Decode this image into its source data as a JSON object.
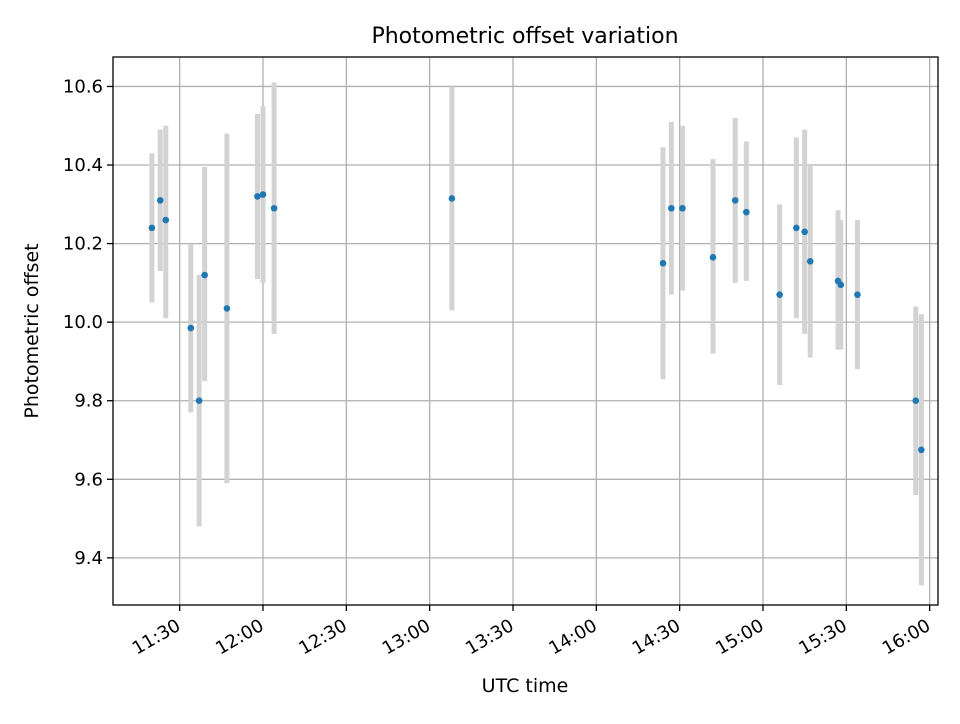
{
  "chart_data": {
    "type": "scatter",
    "title": "Photometric offset variation",
    "xlabel": "UTC time",
    "ylabel": "Photometric offset",
    "xlim": [
      "11:06",
      "16:03"
    ],
    "ylim": [
      9.28,
      10.675
    ],
    "grid": true,
    "x_ticks": [
      "11:30",
      "12:00",
      "12:30",
      "13:00",
      "13:30",
      "14:00",
      "14:30",
      "15:00",
      "15:30",
      "16:00"
    ],
    "y_ticks": [
      9.4,
      9.6,
      9.8,
      10.0,
      10.2,
      10.4,
      10.6
    ],
    "x_tick_label_rotation_deg": -30,
    "colors": {
      "points": "#1f77b4",
      "error_bars": "#d3d3d3",
      "grid": "#b0b0b0"
    },
    "series": [
      {
        "marker": "point",
        "points": [
          {
            "x": "11:20",
            "y": 10.24,
            "lo": 10.05,
            "hi": 10.43
          },
          {
            "x": "11:23",
            "y": 10.31,
            "lo": 10.13,
            "hi": 10.49
          },
          {
            "x": "11:25",
            "y": 10.26,
            "lo": 10.01,
            "hi": 10.5
          },
          {
            "x": "11:34",
            "y": 9.985,
            "lo": 9.77,
            "hi": 10.2
          },
          {
            "x": "11:37",
            "y": 9.8,
            "lo": 9.48,
            "hi": 10.12
          },
          {
            "x": "11:39",
            "y": 10.12,
            "lo": 9.85,
            "hi": 10.395
          },
          {
            "x": "11:47",
            "y": 10.035,
            "lo": 9.59,
            "hi": 10.48
          },
          {
            "x": "11:58",
            "y": 10.32,
            "lo": 10.11,
            "hi": 10.53
          },
          {
            "x": "12:00",
            "y": 10.325,
            "lo": 10.1,
            "hi": 10.55
          },
          {
            "x": "12:04",
            "y": 10.29,
            "lo": 9.97,
            "hi": 10.61
          },
          {
            "x": "13:08",
            "y": 10.315,
            "lo": 10.03,
            "hi": 10.6
          },
          {
            "x": "14:24",
            "y": 10.15,
            "lo": 9.855,
            "hi": 10.445
          },
          {
            "x": "14:27",
            "y": 10.29,
            "lo": 10.07,
            "hi": 10.51
          },
          {
            "x": "14:31",
            "y": 10.29,
            "lo": 10.08,
            "hi": 10.5
          },
          {
            "x": "14:42",
            "y": 10.165,
            "lo": 9.92,
            "hi": 10.415
          },
          {
            "x": "14:50",
            "y": 10.31,
            "lo": 10.1,
            "hi": 10.52
          },
          {
            "x": "14:54",
            "y": 10.28,
            "lo": 10.105,
            "hi": 10.46
          },
          {
            "x": "15:06",
            "y": 10.07,
            "lo": 9.84,
            "hi": 10.3
          },
          {
            "x": "15:12",
            "y": 10.24,
            "lo": 10.01,
            "hi": 10.47
          },
          {
            "x": "15:15",
            "y": 10.23,
            "lo": 9.97,
            "hi": 10.49
          },
          {
            "x": "15:17",
            "y": 10.155,
            "lo": 9.91,
            "hi": 10.4
          },
          {
            "x": "15:27",
            "y": 10.105,
            "lo": 9.93,
            "hi": 10.285
          },
          {
            "x": "15:28",
            "y": 10.095,
            "lo": 9.93,
            "hi": 10.26
          },
          {
            "x": "15:34",
            "y": 10.07,
            "lo": 9.88,
            "hi": 10.26
          },
          {
            "x": "15:55",
            "y": 9.8,
            "lo": 9.56,
            "hi": 10.04
          },
          {
            "x": "15:57",
            "y": 9.675,
            "lo": 9.33,
            "hi": 10.02
          }
        ]
      }
    ]
  }
}
